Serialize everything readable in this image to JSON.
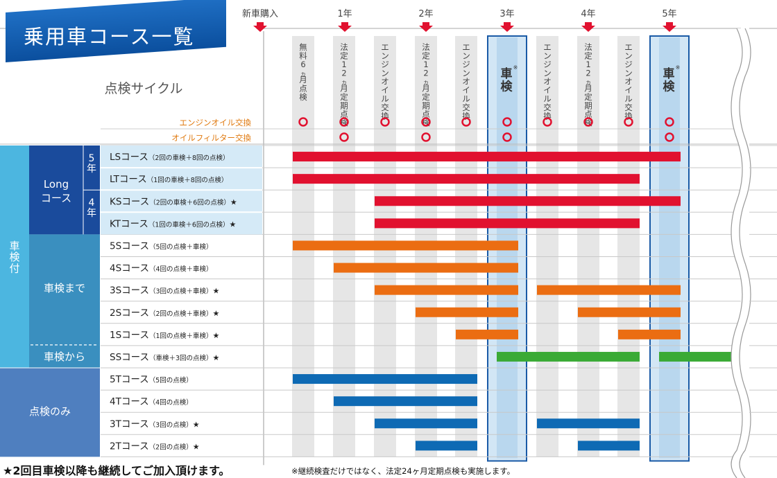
{
  "title": "乗用車コース一覧",
  "timeline": [
    "新車購入",
    "1年",
    "2年",
    "3年",
    "4年",
    "5年"
  ],
  "inspection_label": "点検サイクル",
  "events": [
    {
      "label": "無料6ヵ月点検",
      "oil": true,
      "filter": false
    },
    {
      "label": "法定12ヵ月定期点検",
      "oil": true,
      "filter": true
    },
    {
      "label": "エンジンオイル交換",
      "oil": true,
      "filter": false
    },
    {
      "label": "法定12ヵ月定期点検",
      "oil": true,
      "filter": true
    },
    {
      "label": "エンジンオイル交換",
      "oil": true,
      "filter": false
    },
    {
      "label": "車検",
      "note": "※",
      "shaken": true,
      "oil": true,
      "filter": true
    },
    {
      "label": "エンジンオイル交換",
      "oil": true,
      "filter": false
    },
    {
      "label": "法定12ヵ月定期点検",
      "oil": true,
      "filter": false
    },
    {
      "label": "エンジンオイル交換",
      "oil": true,
      "filter": false
    },
    {
      "label": "車検",
      "note": "※",
      "shaken": true,
      "oil": true,
      "filter": true
    }
  ],
  "row_labels": {
    "oil": "エンジンオイル交換",
    "filter": "オイルフィルター交換"
  },
  "groups": {
    "shaken_tsuki": "車検付",
    "long": "Longコース",
    "long_5": "5年",
    "long_4": "4年",
    "made": "車検まで",
    "kara": "車検から",
    "tenken_nomi": "点検のみ"
  },
  "courses": [
    {
      "name": "LSコース",
      "detail": "（2回の車検＋8回の点検）",
      "star": "",
      "color": "red",
      "segments": [
        [
          1,
          10
        ]
      ]
    },
    {
      "name": "LTコース",
      "detail": "（1回の車検＋8回の点検）",
      "star": "",
      "color": "red",
      "segments": [
        [
          1,
          9
        ]
      ]
    },
    {
      "name": "KSコース",
      "detail": "（2回の車検＋6回の点検）",
      "star": "★",
      "color": "red",
      "segments": [
        [
          3,
          10
        ]
      ]
    },
    {
      "name": "KTコース",
      "detail": "（1回の車検＋6回の点検）",
      "star": "★",
      "color": "red",
      "segments": [
        [
          3,
          9
        ]
      ]
    },
    {
      "name": "5Sコース",
      "detail": "（5回の点検＋車検）",
      "star": "",
      "color": "orange",
      "segments": [
        [
          1,
          6
        ]
      ]
    },
    {
      "name": "4Sコース",
      "detail": "（4回の点検＋車検）",
      "star": "",
      "color": "orange",
      "segments": [
        [
          2,
          6
        ]
      ]
    },
    {
      "name": "3Sコース",
      "detail": "（3回の点検＋車検）",
      "star": "★",
      "color": "orange",
      "segments": [
        [
          3,
          6
        ],
        [
          7,
          10
        ]
      ]
    },
    {
      "name": "2Sコース",
      "detail": "（2回の点検＋車検）",
      "star": "★",
      "color": "orange",
      "segments": [
        [
          4,
          6
        ],
        [
          8,
          10
        ]
      ]
    },
    {
      "name": "1Sコース",
      "detail": "（1回の点検＋車検）",
      "star": "★",
      "color": "orange",
      "segments": [
        [
          5,
          6
        ],
        [
          9,
          10
        ]
      ]
    },
    {
      "name": "SSコース",
      "detail": "（車検＋3回の点検）",
      "star": "★",
      "color": "green",
      "segments": [
        [
          6,
          9
        ],
        [
          10,
          11
        ]
      ]
    },
    {
      "name": "5Tコース",
      "detail": "（5回の点検）",
      "star": "",
      "color": "blue",
      "segments": [
        [
          1,
          5
        ]
      ]
    },
    {
      "name": "4Tコース",
      "detail": "（4回の点検）",
      "star": "",
      "color": "blue",
      "segments": [
        [
          2,
          5
        ]
      ]
    },
    {
      "name": "3Tコース",
      "detail": "（3回の点検）",
      "star": "★",
      "color": "blue",
      "segments": [
        [
          3,
          5
        ],
        [
          7,
          9
        ]
      ]
    },
    {
      "name": "2Tコース",
      "detail": "（2回の点検）",
      "star": "★",
      "color": "blue",
      "segments": [
        [
          4,
          5
        ],
        [
          8,
          9
        ]
      ]
    }
  ],
  "colors": {
    "red": "#e1112f",
    "orange": "#eb6d12",
    "green": "#3aaa35",
    "blue": "#0e6ab4",
    "navy": "#1a4b9c",
    "teal": "#3a8fbf",
    "sky": "#4cb6e0",
    "steel": "#4f7fbf",
    "label_bg": "#d5eaf7",
    "orange_text": "#e07a10"
  },
  "footer": {
    "note": "★2回目車検以降も継続してご加入頂けます。",
    "small": "※継続検査だけではなく、法定24ヶ月定期点検も実施します。"
  }
}
